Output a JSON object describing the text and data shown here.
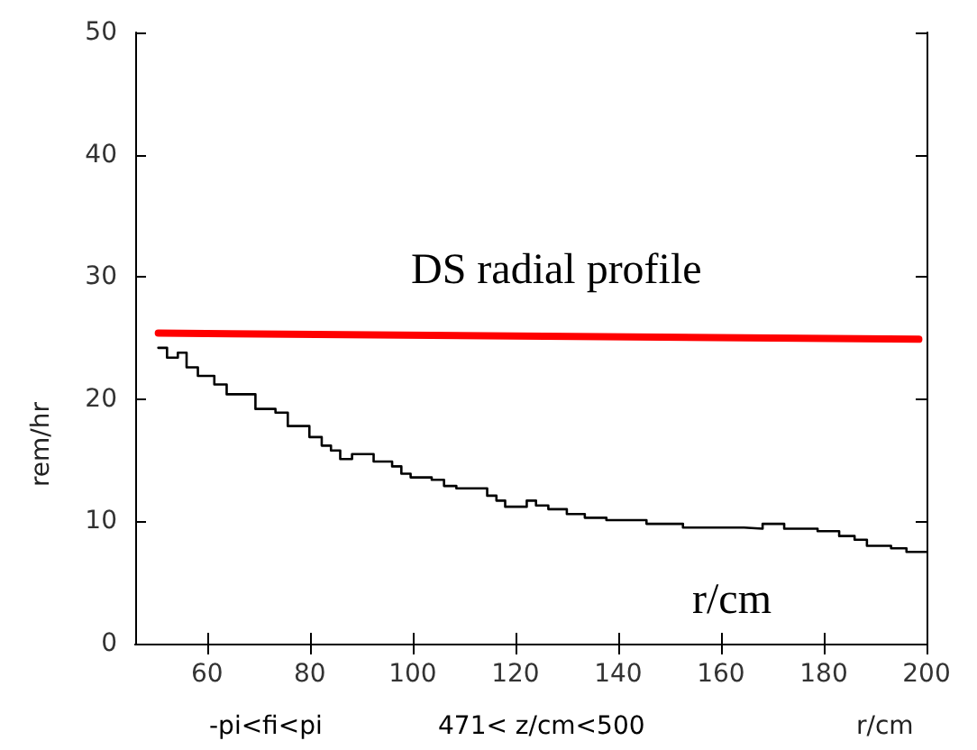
{
  "chart_data": {
    "type": "line",
    "xlabel": "r/cm",
    "ylabel": "rem/hr",
    "annotations": [
      "DS radial profile",
      "r/cm",
      "-pi<fi<pi",
      "471< z/cm<500"
    ],
    "xlim": [
      46,
      200
    ],
    "xticks": [
      60,
      80,
      100,
      120,
      140,
      160,
      180,
      200
    ],
    "ylim": [
      0,
      50
    ],
    "yticks": [
      0,
      10,
      20,
      30,
      40,
      50
    ],
    "grid": false,
    "marker": "none",
    "series": [
      {
        "type": "step",
        "color": "#000000",
        "x": [
          50.5,
          52.2,
          54.3,
          56,
          58.2,
          61.4,
          63.8,
          69.4,
          73.3,
          75.7,
          79.9,
          82.3,
          84.1,
          85.9,
          88.2,
          92.4,
          96,
          97.8,
          99.6,
          103.7,
          106.1,
          108.5,
          114.5,
          116.3,
          118,
          122.2,
          124,
          126.4,
          130,
          133.5,
          137.7,
          145.5,
          152.6,
          164.5,
          168.1,
          172.3,
          178.8,
          183,
          186,
          188.4,
          193.1,
          196.1,
          200
        ],
        "values": [
          24.2,
          23.4,
          23.8,
          22.6,
          21.9,
          21.2,
          20.4,
          19.2,
          18.9,
          17.8,
          16.9,
          16.2,
          15.8,
          15.1,
          15.5,
          14.9,
          14.5,
          13.9,
          13.6,
          13.4,
          12.9,
          12.7,
          12.1,
          11.7,
          11.2,
          11.7,
          11.3,
          11,
          10.6,
          10.3,
          10.1,
          9.8,
          9.5,
          9.4,
          9.8,
          9.4,
          9.2,
          8.8,
          8.5,
          8,
          7.8,
          7.5,
          7.5
        ]
      },
      {
        "color": "#ff0000",
        "x": [
          50.5,
          198.5
        ],
        "values": [
          25.4,
          24.9
        ]
      }
    ]
  }
}
